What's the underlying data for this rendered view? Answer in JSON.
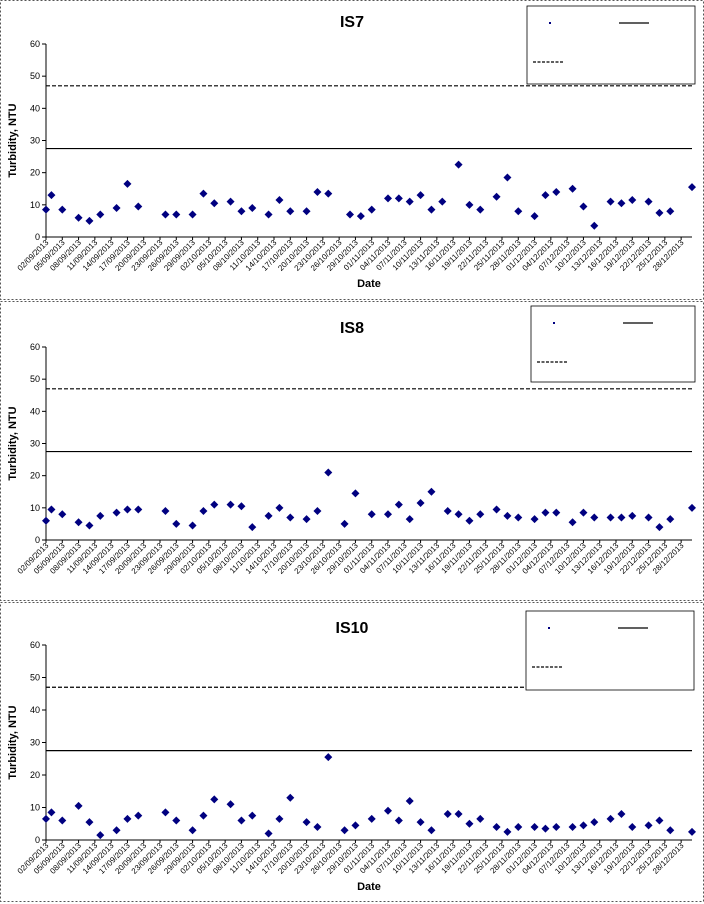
{
  "colors": {
    "marker": "#000080",
    "line": "#000000",
    "panel_border": "#555555"
  },
  "chart_data": [
    {
      "type": "scatter",
      "title": "IS7",
      "xlabel": "Date",
      "ylabel": "Turbidity, NTU",
      "ylim": [
        0,
        60
      ],
      "yticks": [
        0,
        10,
        20,
        30,
        40,
        50,
        60
      ],
      "xlim": [
        "2013-09-02",
        "2013-12-30"
      ],
      "x_tick_labels": [
        "02/09/2013",
        "05/09/2013",
        "08/09/2013",
        "11/09/2013",
        "14/09/2013",
        "17/09/2013",
        "20/09/2013",
        "23/09/2013",
        "26/09/2013",
        "29/09/2013",
        "02/10/2013",
        "05/10/2013",
        "08/10/2013",
        "11/10/2013",
        "14/10/2013",
        "17/10/2013",
        "20/10/2013",
        "23/10/2013",
        "26/10/2013",
        "29/10/2013",
        "01/11/2013",
        "04/11/2013",
        "07/11/2013",
        "10/11/2013",
        "13/11/2013",
        "16/11/2013",
        "19/11/2013",
        "22/11/2013",
        "25/11/2013",
        "28/11/2013",
        "01/12/2013",
        "04/12/2013",
        "07/12/2013",
        "10/12/2013",
        "13/12/2013",
        "16/12/2013",
        "19/12/2013",
        "22/12/2013",
        "25/12/2013",
        "28/12/2013"
      ],
      "grid": false,
      "legend_position": "top-right",
      "legend_entries": [
        "",
        "",
        ""
      ],
      "reference_lines": [
        {
          "value": 47,
          "style": "dashed"
        },
        {
          "value": 27.5,
          "style": "solid"
        }
      ],
      "series": [
        {
          "x": [
            "2013-09-02",
            "2013-09-03",
            "2013-09-05",
            "2013-09-08",
            "2013-09-10",
            "2013-09-12",
            "2013-09-15",
            "2013-09-17",
            "2013-09-19",
            "2013-09-24",
            "2013-09-26",
            "2013-09-29",
            "2013-10-01",
            "2013-10-03",
            "2013-10-06",
            "2013-10-08",
            "2013-10-10",
            "2013-10-13",
            "2013-10-15",
            "2013-10-17",
            "2013-10-20",
            "2013-10-22",
            "2013-10-24",
            "2013-10-28",
            "2013-10-30",
            "2013-11-01",
            "2013-11-04",
            "2013-11-06",
            "2013-11-08",
            "2013-11-10",
            "2013-11-12",
            "2013-11-14",
            "2013-11-17",
            "2013-11-19",
            "2013-11-21",
            "2013-11-24",
            "2013-11-26",
            "2013-11-28",
            "2013-12-01",
            "2013-12-03",
            "2013-12-05",
            "2013-12-08",
            "2013-12-10",
            "2013-12-12",
            "2013-12-15",
            "2013-12-17",
            "2013-12-19",
            "2013-12-22",
            "2013-12-24",
            "2013-12-26",
            "2013-12-30"
          ],
          "values": [
            8.5,
            13,
            8.5,
            6,
            5,
            7,
            9,
            16.5,
            9.5,
            7,
            7,
            7,
            13.5,
            10.5,
            11,
            8,
            9,
            7,
            11.5,
            8,
            8,
            14,
            13.5,
            7,
            6.5,
            8.5,
            12,
            12,
            11,
            13,
            8.5,
            11,
            22.5,
            10,
            8.5,
            12.5,
            18.5,
            8,
            6.5,
            13,
            14,
            15,
            9.5,
            3.5,
            11,
            10.5,
            11.5,
            11,
            7.5,
            8,
            15.5
          ]
        }
      ]
    },
    {
      "type": "scatter",
      "title": "IS8",
      "xlabel": "",
      "ylabel": "Turbidity, NTU",
      "ylim": [
        0,
        60
      ],
      "yticks": [
        0,
        10,
        20,
        30,
        40,
        50,
        60
      ],
      "xlim": [
        "2013-09-02",
        "2013-12-30"
      ],
      "x_tick_labels": [
        "02/09/2013",
        "05/09/2013",
        "08/09/2013",
        "11/09/2013",
        "14/09/2013",
        "17/09/2013",
        "20/09/2013",
        "23/09/2013",
        "26/09/2013",
        "29/09/2013",
        "02/10/2013",
        "05/10/2013",
        "08/10/2013",
        "11/10/2013",
        "14/10/2013",
        "17/10/2013",
        "20/10/2013",
        "23/10/2013",
        "26/10/2013",
        "29/10/2013",
        "01/11/2013",
        "04/11/2013",
        "07/11/2013",
        "10/11/2013",
        "13/11/2013",
        "16/11/2013",
        "19/11/2013",
        "22/11/2013",
        "25/11/2013",
        "28/11/2013",
        "01/12/2013",
        "04/12/2013",
        "07/12/2013",
        "10/12/2013",
        "13/12/2013",
        "16/12/2013",
        "19/12/2013",
        "22/12/2013",
        "25/12/2013",
        "28/12/2013"
      ],
      "grid": false,
      "legend_position": "top-right",
      "legend_entries": [
        "",
        "",
        ""
      ],
      "reference_lines": [
        {
          "value": 47,
          "style": "dashed"
        },
        {
          "value": 27.5,
          "style": "solid"
        }
      ],
      "series": [
        {
          "x": [
            "2013-09-02",
            "2013-09-03",
            "2013-09-05",
            "2013-09-08",
            "2013-09-10",
            "2013-09-12",
            "2013-09-15",
            "2013-09-17",
            "2013-09-19",
            "2013-09-24",
            "2013-09-26",
            "2013-09-29",
            "2013-10-01",
            "2013-10-03",
            "2013-10-06",
            "2013-10-08",
            "2013-10-10",
            "2013-10-13",
            "2013-10-15",
            "2013-10-17",
            "2013-10-20",
            "2013-10-22",
            "2013-10-24",
            "2013-10-27",
            "2013-10-29",
            "2013-11-01",
            "2013-11-04",
            "2013-11-06",
            "2013-11-08",
            "2013-11-10",
            "2013-11-12",
            "2013-11-15",
            "2013-11-17",
            "2013-11-19",
            "2013-11-21",
            "2013-11-24",
            "2013-11-26",
            "2013-11-28",
            "2013-12-01",
            "2013-12-03",
            "2013-12-05",
            "2013-12-08",
            "2013-12-10",
            "2013-12-12",
            "2013-12-15",
            "2013-12-17",
            "2013-12-19",
            "2013-12-22",
            "2013-12-24",
            "2013-12-26",
            "2013-12-30"
          ],
          "values": [
            6,
            9.5,
            8,
            5.5,
            4.5,
            7.5,
            8.5,
            9.5,
            9.5,
            9,
            5,
            4.5,
            9,
            11,
            11,
            10.5,
            4,
            7.5,
            10,
            7,
            6.5,
            9,
            21,
            5,
            14.5,
            8,
            8,
            11,
            6.5,
            11.5,
            15,
            9,
            8,
            6,
            8,
            9.5,
            7.5,
            7,
            6.5,
            8.5,
            8.5,
            5.5,
            8.5,
            7,
            7,
            7,
            7.5,
            7,
            4,
            6.5,
            10
          ]
        }
      ]
    },
    {
      "type": "scatter",
      "title": "IS10",
      "xlabel": "Date",
      "ylabel": "Turbidity, NTU",
      "ylim": [
        0,
        60
      ],
      "yticks": [
        0,
        10,
        20,
        30,
        40,
        50,
        60
      ],
      "xlim": [
        "2013-09-02",
        "2013-12-30"
      ],
      "x_tick_labels": [
        "02/09/2013",
        "05/09/2013",
        "08/09/2013",
        "11/09/2013",
        "14/09/2013",
        "17/09/2013",
        "20/09/2013",
        "23/09/2013",
        "26/09/2013",
        "29/09/2013",
        "02/10/2013",
        "05/10/2013",
        "08/10/2013",
        "11/10/2013",
        "14/10/2013",
        "17/10/2013",
        "20/10/2013",
        "23/10/2013",
        "26/10/2013",
        "29/10/2013",
        "01/11/2013",
        "04/11/2013",
        "07/11/2013",
        "10/11/2013",
        "13/11/2013",
        "16/11/2013",
        "19/11/2013",
        "22/11/2013",
        "25/11/2013",
        "28/11/2013",
        "01/12/2013",
        "04/12/2013",
        "07/12/2013",
        "10/12/2013",
        "13/12/2013",
        "16/12/2013",
        "19/12/2013",
        "22/12/2013",
        "25/12/2013",
        "28/12/2013"
      ],
      "grid": false,
      "legend_position": "top-right",
      "legend_entries": [
        "",
        "",
        ""
      ],
      "reference_lines": [
        {
          "value": 47,
          "style": "dashed"
        },
        {
          "value": 27.5,
          "style": "solid"
        }
      ],
      "series": [
        {
          "x": [
            "2013-09-02",
            "2013-09-03",
            "2013-09-05",
            "2013-09-08",
            "2013-09-10",
            "2013-09-12",
            "2013-09-15",
            "2013-09-17",
            "2013-09-19",
            "2013-09-24",
            "2013-09-26",
            "2013-09-29",
            "2013-10-01",
            "2013-10-03",
            "2013-10-06",
            "2013-10-08",
            "2013-10-10",
            "2013-10-13",
            "2013-10-15",
            "2013-10-17",
            "2013-10-20",
            "2013-10-22",
            "2013-10-24",
            "2013-10-27",
            "2013-10-29",
            "2013-11-01",
            "2013-11-04",
            "2013-11-06",
            "2013-11-08",
            "2013-11-10",
            "2013-11-12",
            "2013-11-15",
            "2013-11-17",
            "2013-11-19",
            "2013-11-21",
            "2013-11-24",
            "2013-11-26",
            "2013-11-28",
            "2013-12-01",
            "2013-12-03",
            "2013-12-05",
            "2013-12-08",
            "2013-12-10",
            "2013-12-12",
            "2013-12-15",
            "2013-12-17",
            "2013-12-19",
            "2013-12-22",
            "2013-12-24",
            "2013-12-26",
            "2013-12-30"
          ],
          "values": [
            6.5,
            8.5,
            6,
            10.5,
            5.5,
            1.5,
            3,
            6.5,
            7.5,
            8.5,
            6,
            3,
            7.5,
            12.5,
            11,
            6,
            7.5,
            2,
            6.5,
            13,
            5.5,
            4,
            25.5,
            3,
            4.5,
            6.5,
            9,
            6,
            12,
            5.5,
            3,
            8,
            8,
            5,
            6.5,
            4,
            2.5,
            4,
            4,
            3.5,
            4,
            4,
            4.5,
            5.5,
            6.5,
            8,
            4,
            4.5,
            6,
            3,
            2.5
          ]
        }
      ]
    }
  ]
}
